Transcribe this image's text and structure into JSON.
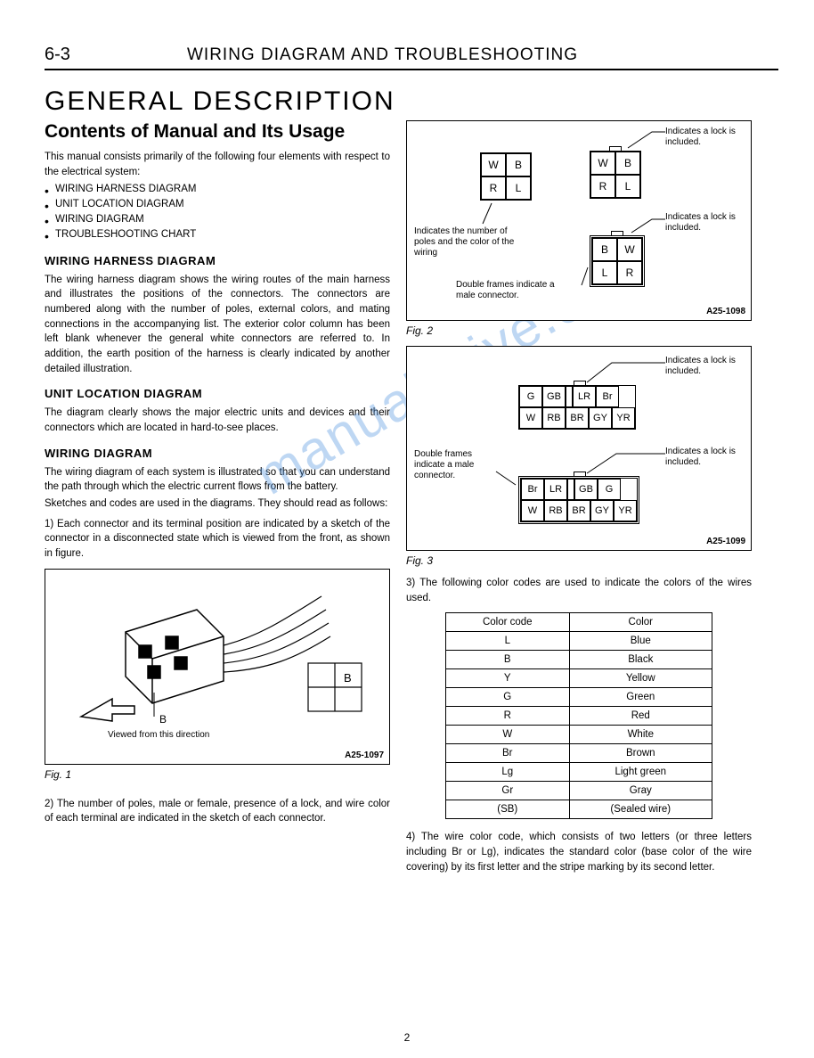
{
  "header": {
    "page_number": "6-3",
    "title": "WIRING DIAGRAM AND TROUBLESHOOTING"
  },
  "main_title": "GENERAL DESCRIPTION",
  "sub_title": "Contents of Manual and Its Usage",
  "intro": "This manual consists primarily of the following four elements with respect to the electrical system:",
  "bullets": [
    "WIRING HARNESS DIAGRAM",
    "UNIT LOCATION DIAGRAM",
    "WIRING DIAGRAM",
    "TROUBLESHOOTING CHART"
  ],
  "sections": {
    "whd": {
      "h": "WIRING HARNESS DIAGRAM",
      "p": "The wiring harness diagram shows the wiring routes of the main harness and illustrates the positions of the connectors. The connectors are numbered along with the number of poles, external colors, and mating connections in the accompanying list. The exterior color column has been left blank whenever the general white connectors are referred to. In addition, the earth position of the harness is clearly indicated by another detailed illustration."
    },
    "uld": {
      "h": "UNIT LOCATION DIAGRAM",
      "p": "The diagram clearly shows the major electric units and devices and their connectors which are located in hard-to-see places."
    },
    "wd": {
      "h": "WIRING DIAGRAM",
      "p1": "The wiring diagram of each system is illustrated so that you can understand the path through which the electric current flows from the battery.",
      "p2": "Sketches and codes are used in the diagrams. They should read as follows:",
      "p3": "1)  Each connector and its terminal position are indicated by a sketch of the connector in a disconnected state which is viewed from the front, as shown in figure."
    }
  },
  "fig1": {
    "caption": "Fig. 1",
    "id": "A25-1097",
    "label_b": "B",
    "note": "Viewed from this direction"
  },
  "left_p2": "2)  The number of poles, male or female, presence of a lock, and wire color of each terminal are indicated in the sketch of each connector.",
  "fig2": {
    "caption": "Fig. 2",
    "id": "A25-1098",
    "note_lock": "Indicates a lock is included.",
    "note_poles": "Indicates the number of poles and the color of the wiring",
    "note_double": "Double frames indicate a male connector.",
    "conn_a": [
      [
        "W",
        "B"
      ],
      [
        "R",
        "L"
      ]
    ],
    "conn_b": [
      [
        "W",
        "B"
      ],
      [
        "R",
        "L"
      ]
    ],
    "conn_c": [
      [
        "B",
        "W"
      ],
      [
        "L",
        "R"
      ]
    ]
  },
  "fig3": {
    "caption": "Fig. 3",
    "id": "A25-1099",
    "note_lock": "Indicates a lock is included.",
    "note_double": "Double frames indicate a male connector.",
    "conn_top": [
      [
        "G",
        "GB",
        "",
        "LR",
        "Br"
      ],
      [
        "W",
        "RB",
        "BR",
        "GY",
        "YR"
      ]
    ],
    "conn_bot": [
      [
        "Br",
        "LR",
        "",
        "GB",
        "G"
      ],
      [
        "W",
        "RB",
        "BR",
        "GY",
        "YR"
      ]
    ]
  },
  "right_p3": "3)  The following color codes are used to indicate the colors of the wires used.",
  "color_table": {
    "headers": [
      "Color code",
      "Color"
    ],
    "rows": [
      [
        "L",
        "Blue"
      ],
      [
        "B",
        "Black"
      ],
      [
        "Y",
        "Yellow"
      ],
      [
        "G",
        "Green"
      ],
      [
        "R",
        "Red"
      ],
      [
        "W",
        "White"
      ],
      [
        "Br",
        "Brown"
      ],
      [
        "Lg",
        "Light green"
      ],
      [
        "Gr",
        "Gray"
      ],
      [
        "(SB)",
        "(Sealed wire)"
      ]
    ]
  },
  "right_p4": "4)  The wire color code, which consists of two letters (or three letters including Br or Lg), indicates the standard color (base color of the wire covering) by its first letter and the stripe marking by its second letter.",
  "watermark": "manualshive.com",
  "page_foot": "2"
}
